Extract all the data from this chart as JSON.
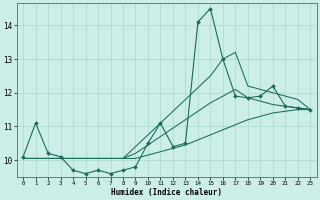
{
  "xlabel": "Humidex (Indice chaleur)",
  "bg_color": "#cceee8",
  "line_color": "#1a6b5a",
  "grid_color": "#aad8d0",
  "xlim": [
    -0.5,
    23.5
  ],
  "ylim": [
    9.5,
    14.65
  ],
  "yticks": [
    10,
    11,
    12,
    13,
    14
  ],
  "xticks": [
    0,
    1,
    2,
    3,
    4,
    5,
    6,
    7,
    8,
    9,
    10,
    11,
    12,
    13,
    14,
    15,
    16,
    17,
    18,
    19,
    20,
    21,
    22,
    23
  ],
  "x": [
    0,
    1,
    2,
    3,
    4,
    5,
    6,
    7,
    8,
    9,
    10,
    11,
    12,
    13,
    14,
    15,
    16,
    17,
    18,
    19,
    20,
    21,
    22,
    23
  ],
  "y_main": [
    10.1,
    11.1,
    10.2,
    10.1,
    9.7,
    9.6,
    9.7,
    9.6,
    9.7,
    9.8,
    10.5,
    11.1,
    10.4,
    10.5,
    14.1,
    14.5,
    13.0,
    11.9,
    11.85,
    11.9,
    12.2,
    11.6,
    11.55,
    11.5
  ],
  "y_upper": [
    10.05,
    10.05,
    10.05,
    10.05,
    10.05,
    10.05,
    10.05,
    10.05,
    10.05,
    10.4,
    10.75,
    11.1,
    11.45,
    11.8,
    12.15,
    12.5,
    13.0,
    13.2,
    12.2,
    12.1,
    12.0,
    11.9,
    11.8,
    11.5
  ],
  "y_mid": [
    10.05,
    10.05,
    10.05,
    10.05,
    10.05,
    10.05,
    10.05,
    10.05,
    10.05,
    10.2,
    10.45,
    10.7,
    10.95,
    11.2,
    11.45,
    11.7,
    11.9,
    12.1,
    11.85,
    11.75,
    11.65,
    11.6,
    11.55,
    11.5
  ],
  "y_lower": [
    10.05,
    10.05,
    10.05,
    10.05,
    10.05,
    10.05,
    10.05,
    10.05,
    10.05,
    10.05,
    10.15,
    10.25,
    10.35,
    10.45,
    10.6,
    10.75,
    10.9,
    11.05,
    11.2,
    11.3,
    11.4,
    11.45,
    11.5,
    11.5
  ]
}
